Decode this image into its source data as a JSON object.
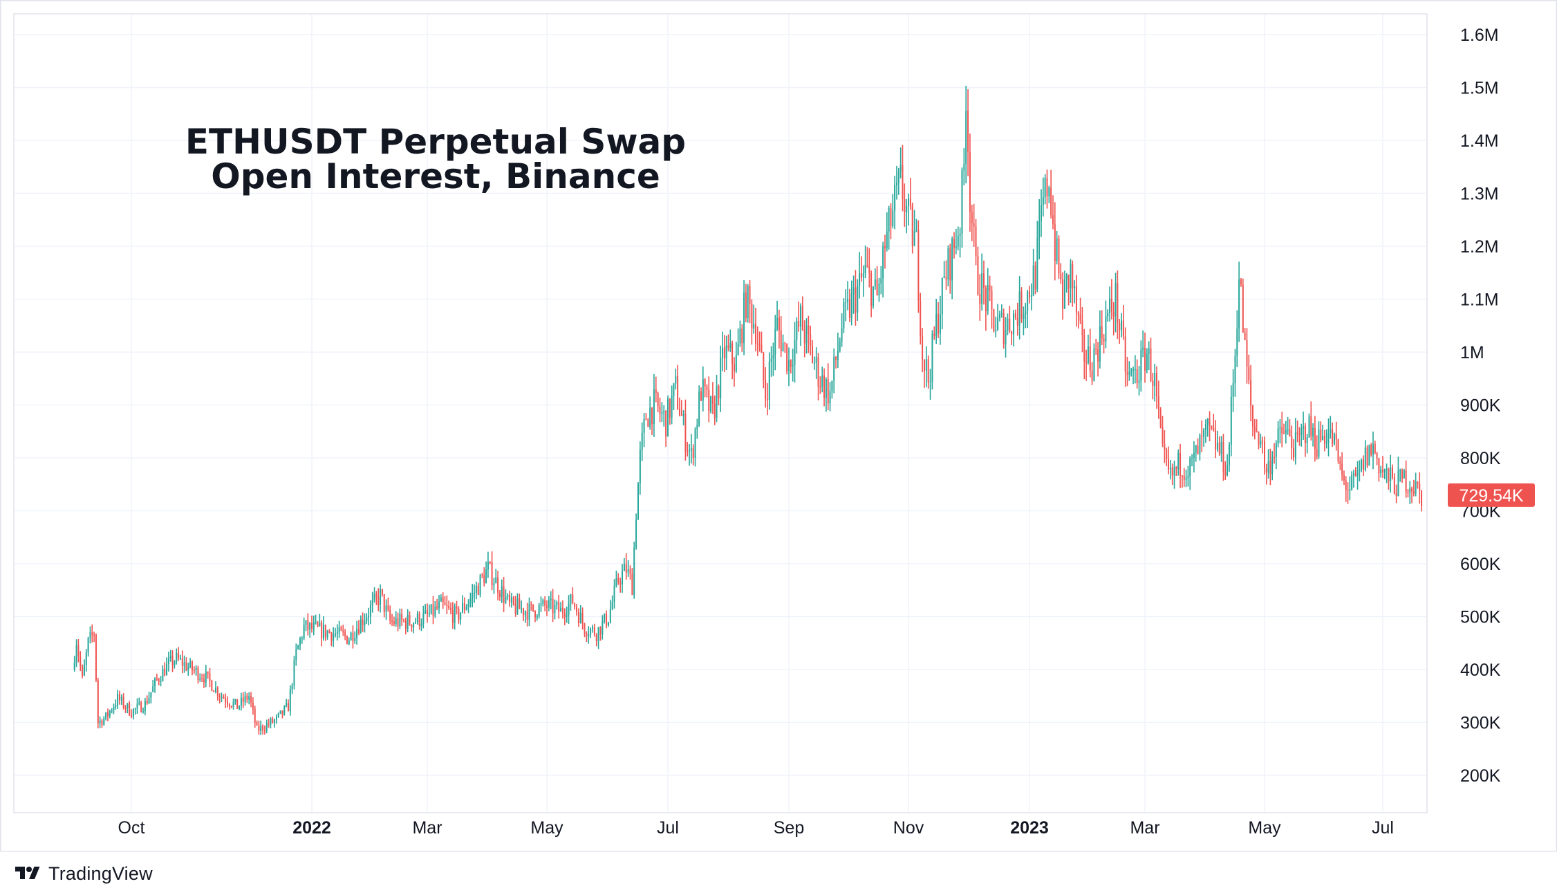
{
  "chart_data": {
    "type": "candlestick",
    "title_lines": [
      "ETHUSDT Perpetual Swap",
      "Open Interest, Binance"
    ],
    "last_value_label": "729.54K",
    "last_value": 729540,
    "ylim": [
      100000,
      1640000
    ],
    "y_ticks": [
      {
        "value": 200000,
        "label": "200K"
      },
      {
        "value": 300000,
        "label": "300K"
      },
      {
        "value": 400000,
        "label": "400K"
      },
      {
        "value": 500000,
        "label": "500K"
      },
      {
        "value": 600000,
        "label": "600K"
      },
      {
        "value": 700000,
        "label": "700K"
      },
      {
        "value": 800000,
        "label": "800K"
      },
      {
        "value": 900000,
        "label": "900K"
      },
      {
        "value": 1000000,
        "label": "1M"
      },
      {
        "value": 1100000,
        "label": "1.1M"
      },
      {
        "value": 1200000,
        "label": "1.2M"
      },
      {
        "value": 1300000,
        "label": "1.3M"
      },
      {
        "value": 1400000,
        "label": "1.4M"
      },
      {
        "value": 1500000,
        "label": "1.5M"
      },
      {
        "value": 1600000,
        "label": "1.6M"
      }
    ],
    "x_ticks": [
      {
        "date": "2021-10-01",
        "label": "Oct",
        "bold": false
      },
      {
        "date": "2022-01-01",
        "label": "2022",
        "bold": true
      },
      {
        "date": "2022-03-01",
        "label": "Mar",
        "bold": false
      },
      {
        "date": "2022-05-01",
        "label": "May",
        "bold": false
      },
      {
        "date": "2022-07-01",
        "label": "Jul",
        "bold": false
      },
      {
        "date": "2022-09-01",
        "label": "Sep",
        "bold": false
      },
      {
        "date": "2022-11-01",
        "label": "Nov",
        "bold": false
      },
      {
        "date": "2023-01-01",
        "label": "2023",
        "bold": true
      },
      {
        "date": "2023-03-01",
        "label": "Mar",
        "bold": false
      },
      {
        "date": "2023-05-01",
        "label": "May",
        "bold": false
      },
      {
        "date": "2023-07-01",
        "label": "Jul",
        "bold": false
      }
    ],
    "date_range": [
      "2021-09-01",
      "2023-07-21"
    ],
    "close_series": [
      [
        "2021-09-01",
        400000
      ],
      [
        "2021-09-03",
        455000
      ],
      [
        "2021-09-06",
        380000
      ],
      [
        "2021-09-09",
        450000
      ],
      [
        "2021-09-12",
        470000
      ],
      [
        "2021-09-14",
        300000
      ],
      [
        "2021-09-18",
        310000
      ],
      [
        "2021-09-24",
        345000
      ],
      [
        "2021-10-01",
        320000
      ],
      [
        "2021-10-08",
        335000
      ],
      [
        "2021-10-14",
        380000
      ],
      [
        "2021-10-20",
        410000
      ],
      [
        "2021-10-24",
        420000
      ],
      [
        "2021-11-01",
        400000
      ],
      [
        "2021-11-08",
        385000
      ],
      [
        "2021-11-16",
        350000
      ],
      [
        "2021-11-24",
        330000
      ],
      [
        "2021-11-30",
        350000
      ],
      [
        "2021-12-04",
        285000
      ],
      [
        "2021-12-14",
        305000
      ],
      [
        "2021-12-20",
        330000
      ],
      [
        "2021-12-24",
        430000
      ],
      [
        "2021-12-28",
        480000
      ],
      [
        "2022-01-10",
        470000
      ],
      [
        "2022-01-20",
        460000
      ],
      [
        "2022-01-28",
        500000
      ],
      [
        "2022-02-05",
        540000
      ],
      [
        "2022-02-10",
        490000
      ],
      [
        "2022-02-20",
        490000
      ],
      [
        "2022-03-01",
        500000
      ],
      [
        "2022-03-08",
        520000
      ],
      [
        "2022-03-16",
        500000
      ],
      [
        "2022-03-24",
        540000
      ],
      [
        "2022-04-01",
        590000
      ],
      [
        "2022-04-06",
        560000
      ],
      [
        "2022-04-12",
        520000
      ],
      [
        "2022-04-22",
        510000
      ],
      [
        "2022-05-01",
        520000
      ],
      [
        "2022-05-08",
        510000
      ],
      [
        "2022-05-14",
        530000
      ],
      [
        "2022-05-20",
        480000
      ],
      [
        "2022-05-26",
        470000
      ],
      [
        "2022-06-01",
        500000
      ],
      [
        "2022-06-06",
        570000
      ],
      [
        "2022-06-10",
        590000
      ],
      [
        "2022-06-13",
        560000
      ],
      [
        "2022-06-15",
        700000
      ],
      [
        "2022-06-17",
        800000
      ],
      [
        "2022-06-20",
        880000
      ],
      [
        "2022-06-24",
        900000
      ],
      [
        "2022-06-30",
        870000
      ],
      [
        "2022-07-05",
        930000
      ],
      [
        "2022-07-10",
        840000
      ],
      [
        "2022-07-13",
        800000
      ],
      [
        "2022-07-18",
        930000
      ],
      [
        "2022-07-24",
        880000
      ],
      [
        "2022-07-30",
        1000000
      ],
      [
        "2022-08-05",
        980000
      ],
      [
        "2022-08-10",
        1100000
      ],
      [
        "2022-08-15",
        1050000
      ],
      [
        "2022-08-20",
        920000
      ],
      [
        "2022-08-26",
        1050000
      ],
      [
        "2022-09-01",
        980000
      ],
      [
        "2022-09-07",
        1060000
      ],
      [
        "2022-09-12",
        1000000
      ],
      [
        "2022-09-17",
        950000
      ],
      [
        "2022-09-22",
        920000
      ],
      [
        "2022-09-28",
        1050000
      ],
      [
        "2022-10-04",
        1100000
      ],
      [
        "2022-10-10",
        1150000
      ],
      [
        "2022-10-16",
        1100000
      ],
      [
        "2022-10-20",
        1200000
      ],
      [
        "2022-10-25",
        1280000
      ],
      [
        "2022-10-28",
        1320000
      ],
      [
        "2022-11-01",
        1250000
      ],
      [
        "2022-11-05",
        1200000
      ],
      [
        "2022-11-08",
        1000000
      ],
      [
        "2022-11-11",
        950000
      ],
      [
        "2022-11-15",
        1050000
      ],
      [
        "2022-11-20",
        1150000
      ],
      [
        "2022-11-24",
        1200000
      ],
      [
        "2022-11-27",
        1250000
      ],
      [
        "2022-11-29",
        1350000
      ],
      [
        "2022-11-30",
        1500000
      ],
      [
        "2022-12-02",
        1300000
      ],
      [
        "2022-12-05",
        1150000
      ],
      [
        "2022-12-10",
        1100000
      ],
      [
        "2022-12-15",
        1050000
      ],
      [
        "2022-12-20",
        1050000
      ],
      [
        "2022-12-25",
        1070000
      ],
      [
        "2022-12-30",
        1100000
      ],
      [
        "2023-01-04",
        1150000
      ],
      [
        "2023-01-08",
        1280000
      ],
      [
        "2023-01-11",
        1330000
      ],
      [
        "2023-01-14",
        1200000
      ],
      [
        "2023-01-18",
        1100000
      ],
      [
        "2023-01-22",
        1150000
      ],
      [
        "2023-01-28",
        1000000
      ],
      [
        "2023-02-02",
        980000
      ],
      [
        "2023-02-08",
        1050000
      ],
      [
        "2023-02-14",
        1100000
      ],
      [
        "2023-02-20",
        950000
      ],
      [
        "2023-02-25",
        960000
      ],
      [
        "2023-03-02",
        1000000
      ],
      [
        "2023-03-06",
        940000
      ],
      [
        "2023-03-10",
        800000
      ],
      [
        "2023-03-14",
        760000
      ],
      [
        "2023-03-19",
        790000
      ],
      [
        "2023-03-24",
        780000
      ],
      [
        "2023-03-29",
        820000
      ],
      [
        "2023-04-02",
        850000
      ],
      [
        "2023-04-07",
        820000
      ],
      [
        "2023-04-12",
        780000
      ],
      [
        "2023-04-16",
        1000000
      ],
      [
        "2023-04-18",
        1150000
      ],
      [
        "2023-04-21",
        1000000
      ],
      [
        "2023-04-25",
        860000
      ],
      [
        "2023-04-29",
        840000
      ],
      [
        "2023-05-02",
        770000
      ],
      [
        "2023-05-06",
        820000
      ],
      [
        "2023-05-11",
        850000
      ],
      [
        "2023-05-17",
        820000
      ],
      [
        "2023-05-23",
        860000
      ],
      [
        "2023-05-28",
        830000
      ],
      [
        "2023-06-02",
        850000
      ],
      [
        "2023-06-06",
        830000
      ],
      [
        "2023-06-10",
        760000
      ],
      [
        "2023-06-14",
        740000
      ],
      [
        "2023-06-18",
        760000
      ],
      [
        "2023-06-22",
        800000
      ],
      [
        "2023-06-26",
        820000
      ],
      [
        "2023-06-30",
        780000
      ],
      [
        "2023-07-04",
        760000
      ],
      [
        "2023-07-08",
        750000
      ],
      [
        "2023-07-12",
        760000
      ],
      [
        "2023-07-16",
        750000
      ],
      [
        "2023-07-21",
        730000
      ]
    ],
    "up_color": "#26a69a",
    "down_color": "#ef5350",
    "grid": true,
    "y_axis_position": "right",
    "label_bg_color": "#ef5350"
  },
  "brand": {
    "name": "TradingView"
  }
}
